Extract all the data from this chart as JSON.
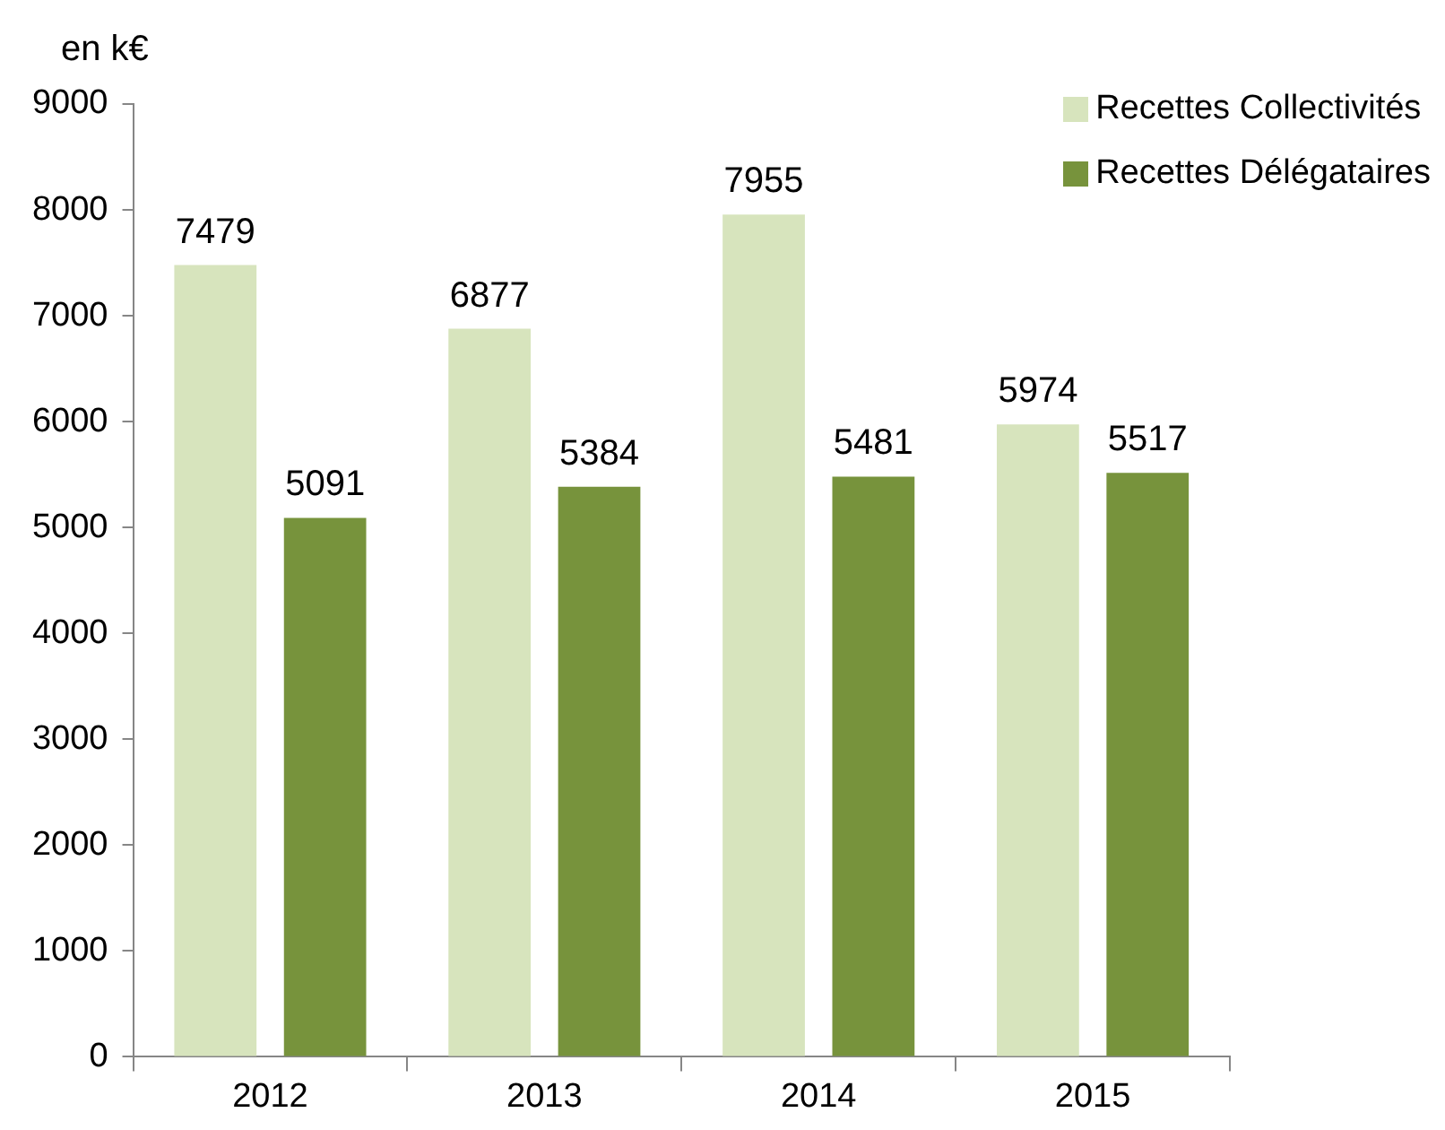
{
  "chart_data": {
    "type": "bar",
    "ylabel": "en k€",
    "categories": [
      "2012",
      "2013",
      "2014",
      "2015"
    ],
    "series": [
      {
        "name": "Recettes Collectivités",
        "color": "#d7e4bd",
        "values": [
          7479,
          6877,
          7955,
          5974
        ]
      },
      {
        "name": "Recettes Délégataires",
        "color": "#77933c",
        "values": [
          5091,
          5384,
          5481,
          5517
        ]
      }
    ],
    "ylim": [
      0,
      9000
    ],
    "yticks": [
      0,
      1000,
      2000,
      3000,
      4000,
      5000,
      6000,
      7000,
      8000,
      9000
    ],
    "grid": false,
    "legend": "top right",
    "data_labels": true
  }
}
